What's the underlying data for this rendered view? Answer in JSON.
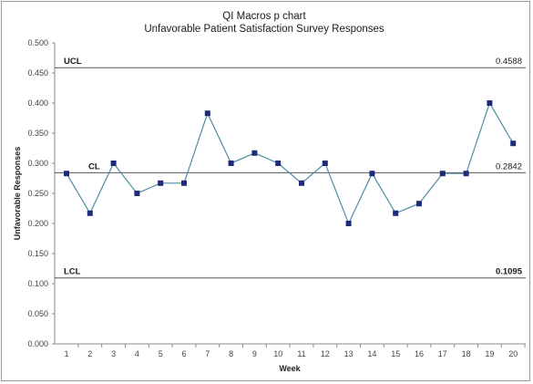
{
  "chart_data": {
    "type": "line",
    "title": "QI Macros p chart",
    "subtitle": "Unfavorable Patient Satisfaction Survey Responses",
    "xlabel": "Week",
    "ylabel": "Unfavorable Responses",
    "x": [
      1,
      2,
      3,
      4,
      5,
      6,
      7,
      8,
      9,
      10,
      11,
      12,
      13,
      14,
      15,
      16,
      17,
      18,
      19,
      20
    ],
    "values": [
      0.283,
      0.217,
      0.3,
      0.25,
      0.267,
      0.267,
      0.383,
      0.3,
      0.317,
      0.3,
      0.267,
      0.3,
      0.2,
      0.283,
      0.217,
      0.233,
      0.283,
      0.283,
      0.4,
      0.333
    ],
    "ylim": [
      0.0,
      0.5
    ],
    "yticks": [
      "0.000",
      "0.050",
      "0.100",
      "0.150",
      "0.200",
      "0.250",
      "0.300",
      "0.350",
      "0.400",
      "0.450",
      "0.500"
    ],
    "grid": false,
    "control_lines": {
      "ucl": {
        "label": "UCL",
        "value": 0.4588,
        "value_text": "0.4588"
      },
      "cl": {
        "label": "CL",
        "value": 0.2842,
        "value_text": "0.2842"
      },
      "lcl": {
        "label": "LCL",
        "value": 0.1095,
        "value_text": "0.1095"
      }
    },
    "colors": {
      "series_line": "#4a8fa0",
      "marker": "#1f2a78",
      "control_line": "#555555"
    }
  }
}
